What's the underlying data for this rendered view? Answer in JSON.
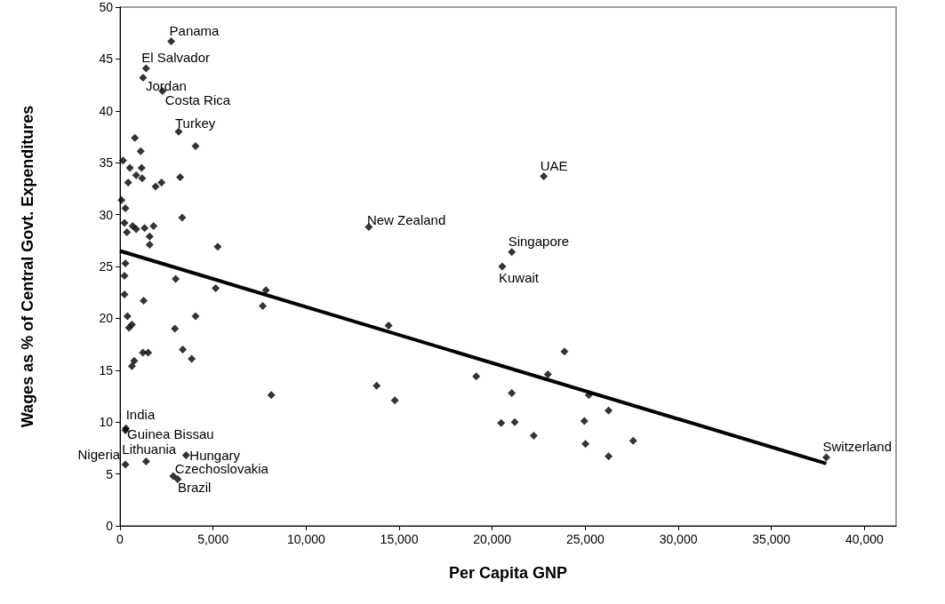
{
  "chart_data": {
    "type": "scatter",
    "xlabel": "Per Capita GNP",
    "ylabel": "Wages as % of Central Govt. Expenditures",
    "xlim": [
      0,
      41700
    ],
    "xticks": [
      {
        "value": 0,
        "label": "0"
      },
      {
        "value": 5000,
        "label": "5,000"
      },
      {
        "value": 10000,
        "label": "10,000"
      },
      {
        "value": 15000,
        "label": "15,000"
      },
      {
        "value": 20000,
        "label": "20,000"
      },
      {
        "value": 25000,
        "label": "25,000"
      },
      {
        "value": 30000,
        "label": "30,000"
      },
      {
        "value": 35000,
        "label": "35,000"
      },
      {
        "value": 40000,
        "label": "40,000"
      }
    ],
    "ylim": [
      0,
      50
    ],
    "yticks": [
      0,
      5,
      10,
      15,
      20,
      25,
      30,
      35,
      40,
      45,
      50
    ],
    "grid": false,
    "marker": "diamond",
    "series": [
      {
        "color": "#000000",
        "x": [
          2750,
          1400,
          1240,
          2280,
          3150,
          22770,
          13370,
          21050,
          20540,
          37950,
          320,
          290,
          1400,
          290,
          3550,
          2860,
          3100,
          800,
          4060,
          1110,
          160,
          530,
          1160,
          870,
          1190,
          440,
          3230,
          1910,
          2230,
          80,
          290,
          3340,
          240,
          680,
          370,
          870,
          1320,
          1800,
          1590,
          1590,
          5250,
          290,
          240,
          2990,
          5140,
          7840,
          240,
          1270,
          7670,
          400,
          4060,
          640,
          480,
          2950,
          3370,
          1230,
          1510,
          3850,
          760,
          640,
          8130,
          13790,
          14430,
          23880,
          22990,
          19140,
          14770,
          21050,
          25190,
          26250,
          20480,
          21210,
          24950,
          22230,
          27570,
          25010,
          26250
        ],
        "values": [
          46.7,
          44.1,
          43.2,
          41.9,
          38.0,
          33.7,
          28.8,
          26.4,
          25.0,
          6.6,
          9.4,
          9.2,
          6.2,
          5.9,
          6.8,
          4.8,
          4.5,
          37.4,
          36.6,
          36.1,
          35.2,
          34.5,
          34.5,
          33.8,
          33.5,
          33.1,
          33.6,
          32.7,
          33.1,
          31.4,
          30.6,
          29.7,
          29.2,
          28.9,
          28.3,
          28.6,
          28.7,
          28.9,
          27.9,
          27.1,
          26.9,
          25.3,
          24.1,
          23.8,
          22.9,
          22.7,
          22.3,
          21.7,
          21.2,
          20.2,
          20.2,
          19.4,
          19.1,
          19.0,
          17.0,
          16.7,
          16.7,
          16.1,
          15.9,
          15.4,
          12.6,
          13.5,
          19.3,
          16.8,
          14.6,
          14.4,
          12.1,
          12.8,
          12.6,
          11.1,
          9.9,
          10.0,
          10.1,
          8.7,
          8.2,
          7.9,
          6.7
        ]
      },
      {
        "type": "line",
        "color": "#000000",
        "marker": "none",
        "line_style": "solid",
        "x": [
          0,
          37950
        ],
        "values": [
          26.5,
          6.0
        ]
      }
    ],
    "annotations": [
      {
        "text": "Panama",
        "x": 2750,
        "y": 46.7
      },
      {
        "text": "El Salvador",
        "x": 1400,
        "y": 44.1
      },
      {
        "text": "Jordan",
        "x": 1240,
        "y": 43.2
      },
      {
        "text": "Costa Rica",
        "x": 2280,
        "y": 41.9
      },
      {
        "text": "Turkey",
        "x": 3150,
        "y": 38.0
      },
      {
        "text": "UAE",
        "x": 22770,
        "y": 33.7
      },
      {
        "text": "New Zealand",
        "x": 13370,
        "y": 28.8
      },
      {
        "text": "Singapore",
        "x": 21050,
        "y": 26.4
      },
      {
        "text": "Kuwait",
        "x": 20540,
        "y": 25.0
      },
      {
        "text": "Switzerland",
        "x": 37950,
        "y": 6.6
      },
      {
        "text": "India",
        "x": 320,
        "y": 9.4
      },
      {
        "text": "Guinea Bissau",
        "x": 290,
        "y": 9.2
      },
      {
        "text": "Lithuania",
        "x": 1400,
        "y": 6.2
      },
      {
        "text": "Nigeria",
        "x": 290,
        "y": 5.9
      },
      {
        "text": "Hungary",
        "x": 3550,
        "y": 6.8
      },
      {
        "text": "Czechoslovakia",
        "x": 2860,
        "y": 4.8
      },
      {
        "text": "Brazil",
        "x": 3100,
        "y": 4.5
      }
    ]
  }
}
